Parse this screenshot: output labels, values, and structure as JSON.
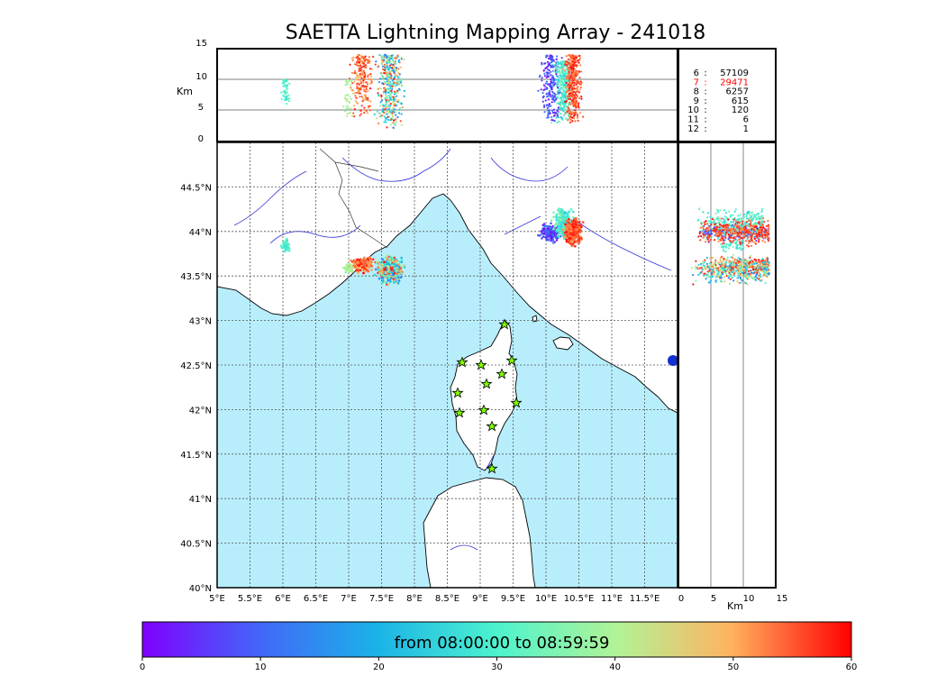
{
  "title": "SAETTA Lightning Mapping Array - 241018",
  "colors": {
    "sea": "#b8eefc",
    "land": "#ffffff",
    "river": "#3333dd",
    "grid": "#555555",
    "frame": "#000000",
    "station_fill": "#7cfc00",
    "highlight_count": "#ff0000"
  },
  "station_icon": "star-icon",
  "top_panel": {
    "ylabel": "Km",
    "yticks": [
      "15",
      "10",
      "5",
      "0"
    ],
    "ylim": [
      0,
      15
    ]
  },
  "right_panel": {
    "xlabel": "Km",
    "xticks": [
      "0",
      "5",
      "10",
      "15"
    ],
    "xlim": [
      0,
      15
    ]
  },
  "map": {
    "lon_ticks": [
      "5°E",
      "5.5°E",
      "6°E",
      "6.5°E",
      "7°E",
      "7.5°E",
      "8°E",
      "8.5°E",
      "9°E",
      "9.5°E",
      "10°E",
      "10.5°E",
      "11°E",
      "11.5°E"
    ],
    "lat_ticks": [
      "44.5°N",
      "44°N",
      "43.5°N",
      "43°N",
      "42.5°N",
      "42°N",
      "41.5°N",
      "41°N",
      "40.5°N",
      "40°N"
    ],
    "lon_range": [
      5,
      12
    ],
    "lat_range": [
      40,
      45
    ]
  },
  "station_counts": [
    {
      "stations": "6",
      "sep": ":",
      "count": "57109",
      "highlight": false
    },
    {
      "stations": "7",
      "sep": ":",
      "count": "29471",
      "highlight": true
    },
    {
      "stations": "8",
      "sep": ":",
      "count": "6257",
      "highlight": false
    },
    {
      "stations": "9",
      "sep": ":",
      "count": "615",
      "highlight": false
    },
    {
      "stations": "10",
      "sep": ":",
      "count": "120",
      "highlight": false
    },
    {
      "stations": "11",
      "sep": ":",
      "count": "6",
      "highlight": false
    },
    {
      "stations": "12",
      "sep": ":",
      "count": "1",
      "highlight": false
    }
  ],
  "colorbar": {
    "label": "from 08:00:00 to 08:59:59",
    "ticks": [
      "0",
      "10",
      "20",
      "30",
      "40",
      "50",
      "60"
    ],
    "range": [
      0,
      60
    ]
  }
}
